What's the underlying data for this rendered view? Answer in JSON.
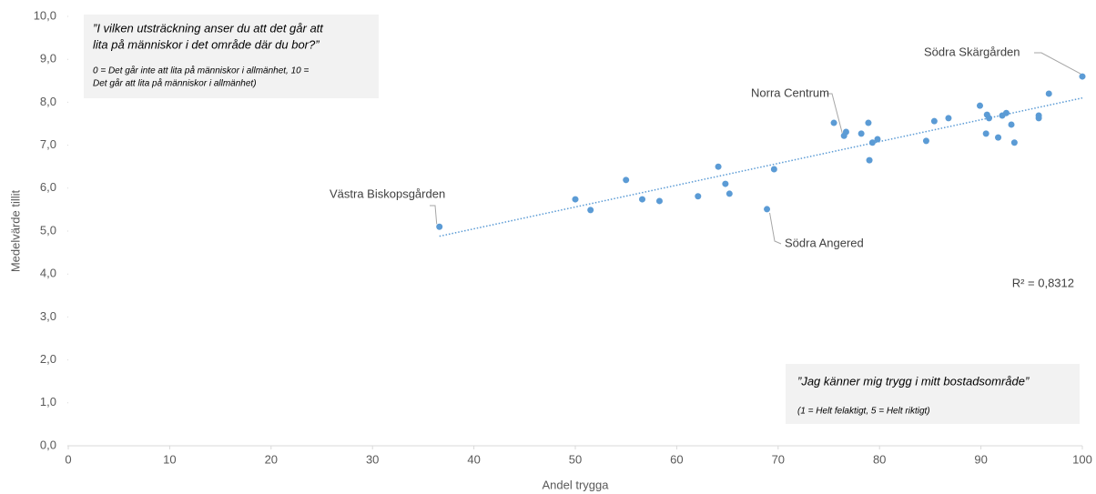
{
  "chart_data": {
    "type": "scatter",
    "xlabel": "Andel trygga",
    "ylabel": "Medelvärde tillit",
    "color": "#5b9bd5",
    "x": [
      36.6,
      50.0,
      51.5,
      55.0,
      56.6,
      58.3,
      62.1,
      64.1,
      64.8,
      65.2,
      68.9,
      69.6,
      75.5,
      76.5,
      76.7,
      78.2,
      78.9,
      79.0,
      79.3,
      79.8,
      84.6,
      85.4,
      86.8,
      89.9,
      90.5,
      90.6,
      90.8,
      91.7,
      92.1,
      92.5,
      93.0,
      93.3,
      95.7,
      95.7,
      96.7,
      100.0
    ],
    "values": [
      5.1,
      5.74,
      5.49,
      6.19,
      5.74,
      5.7,
      5.81,
      6.5,
      6.1,
      5.87,
      5.51,
      6.44,
      7.52,
      7.22,
      7.31,
      7.27,
      7.52,
      6.65,
      7.06,
      7.14,
      7.1,
      7.56,
      7.63,
      7.92,
      7.27,
      7.71,
      7.63,
      7.18,
      7.69,
      7.75,
      7.48,
      7.06,
      7.69,
      7.63,
      8.2,
      8.6
    ],
    "trendline": {
      "x": [
        36.6,
        100
      ],
      "values": [
        4.88,
        8.1
      ],
      "label": "R² = 0,8312"
    },
    "annotations": [
      "Västra Biskopsgården",
      "Södra Angered",
      "Norra Centrum",
      "Södra Skärgården"
    ],
    "xlim": [
      0,
      100
    ],
    "xticks": [
      0,
      10,
      20,
      30,
      40,
      50,
      60,
      70,
      80,
      90,
      100
    ],
    "ylim": [
      0,
      10
    ],
    "yticks": [
      {
        "value": 0,
        "label": "0,0"
      },
      {
        "value": 1,
        "label": "1,0"
      },
      {
        "value": 2,
        "label": "2,0"
      },
      {
        "value": 3,
        "label": "3,0"
      },
      {
        "value": 4,
        "label": "4,0"
      },
      {
        "value": 5,
        "label": "5,0"
      },
      {
        "value": 6,
        "label": "6,0"
      },
      {
        "value": 7,
        "label": "7,0"
      },
      {
        "value": 8,
        "label": "8,0"
      },
      {
        "value": 9,
        "label": "9,0"
      },
      {
        "value": 10,
        "label": "10,0"
      }
    ],
    "boxes": [
      {
        "question": [
          "”I vilken utsträckning anser du att det går att",
          "lita på människor i det område där du bor?”"
        ],
        "scale": [
          "0 = Det går inte att lita på människor i allmänhet, 10 =",
          "Det går att lita på människor i allmänhet)"
        ]
      },
      {
        "question": [
          "”Jag känner mig trygg i mitt bostadsområde”"
        ],
        "scale": [
          "(1 = Helt felaktigt, 5 = Helt riktigt)"
        ]
      }
    ]
  }
}
